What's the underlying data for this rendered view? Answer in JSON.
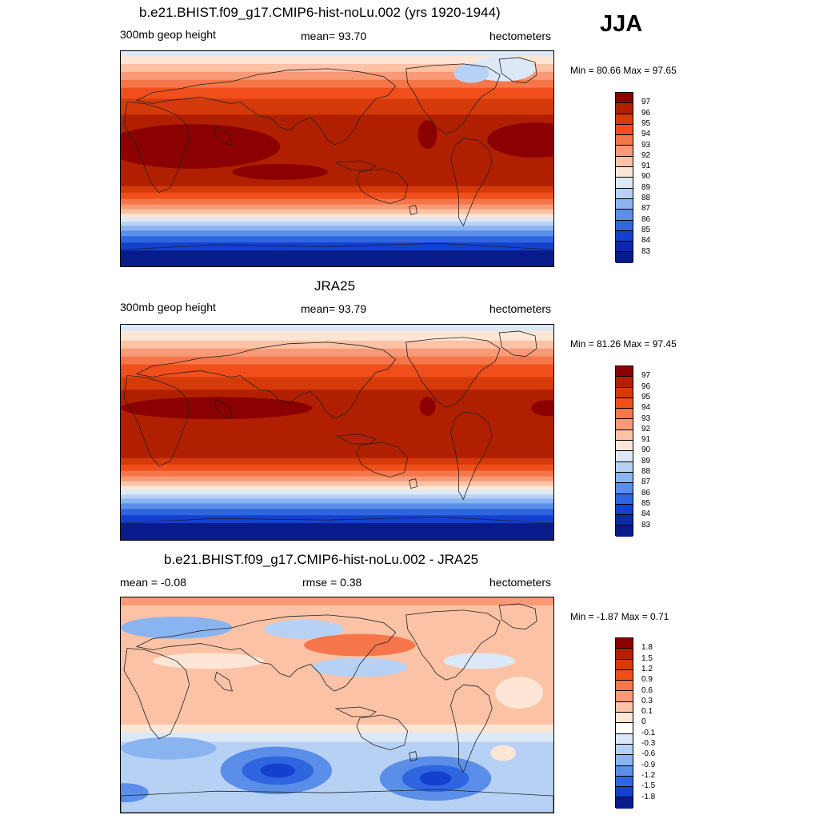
{
  "season": "JJA",
  "panels": [
    {
      "id": "model",
      "title": "b.e21.BHIST.f09_g17.CMIP6-hist-noLu.002 (yrs 1920-1944)",
      "left_label": "300mb geop height",
      "center_label": "mean=  93.70",
      "right_label": "hectometers",
      "minmax": "Min =  80.66 Max =  97.65",
      "colorbar_labels": [
        "97",
        "96",
        "95",
        "94",
        "93",
        "92",
        "91",
        "90",
        "89",
        "88",
        "87",
        "86",
        "85",
        "84",
        "83"
      ],
      "colorbar_colors": [
        "#8b0000",
        "#b02000",
        "#d43a0a",
        "#f04f1c",
        "#f5764a",
        "#f99a76",
        "#fbc2a5",
        "#fde6d6",
        "#dbe8f8",
        "#b7d1f5",
        "#8ab4f0",
        "#5b8ee8",
        "#2f66e0",
        "#1440cf",
        "#0a2aa8",
        "#071b8a"
      ],
      "bands": [
        {
          "top": 0,
          "h": 6,
          "c": "#dbe8f8"
        },
        {
          "top": 6,
          "h": 10,
          "c": "#fde6d6"
        },
        {
          "top": 16,
          "h": 10,
          "c": "#fbc2a5"
        },
        {
          "top": 26,
          "h": 10,
          "c": "#f99a76"
        },
        {
          "top": 36,
          "h": 10,
          "c": "#f5764a"
        },
        {
          "top": 46,
          "h": 14,
          "c": "#f04f1c"
        },
        {
          "top": 60,
          "h": 20,
          "c": "#d43a0a"
        },
        {
          "top": 80,
          "h": 90,
          "c": "#b02000"
        },
        {
          "top": 170,
          "h": 8,
          "c": "#d43a0a"
        },
        {
          "top": 178,
          "h": 8,
          "c": "#f04f1c"
        },
        {
          "top": 186,
          "h": 7,
          "c": "#f5764a"
        },
        {
          "top": 193,
          "h": 6,
          "c": "#f99a76"
        },
        {
          "top": 199,
          "h": 6,
          "c": "#fbc2a5"
        },
        {
          "top": 205,
          "h": 5,
          "c": "#fde6d6"
        },
        {
          "top": 210,
          "h": 5,
          "c": "#dbe8f8"
        },
        {
          "top": 215,
          "h": 5,
          "c": "#b7d1f5"
        },
        {
          "top": 220,
          "h": 6,
          "c": "#8ab4f0"
        },
        {
          "top": 226,
          "h": 7,
          "c": "#5b8ee8"
        },
        {
          "top": 233,
          "h": 8,
          "c": "#2f66e0"
        },
        {
          "top": 241,
          "h": 10,
          "c": "#1440cf"
        },
        {
          "top": 251,
          "h": 20,
          "c": "#071b8a"
        }
      ],
      "blobs": [
        {
          "cx": 90,
          "cy": 120,
          "rx": 110,
          "ry": 28,
          "c": "#8b0000"
        },
        {
          "cx": 520,
          "cy": 112,
          "rx": 60,
          "ry": 22,
          "c": "#8b0000"
        },
        {
          "cx": 200,
          "cy": 152,
          "rx": 60,
          "ry": 10,
          "c": "#8b0000"
        },
        {
          "cx": 385,
          "cy": 105,
          "rx": 12,
          "ry": 18,
          "c": "#8b0000"
        },
        {
          "cx": 480,
          "cy": 22,
          "rx": 40,
          "ry": 16,
          "c": "#dbe8f8"
        },
        {
          "cx": 440,
          "cy": 28,
          "rx": 22,
          "ry": 12,
          "c": "#b7d1f5"
        }
      ]
    },
    {
      "id": "obs",
      "title": "JRA25",
      "left_label": "300mb geop height",
      "center_label": "mean=  93.79",
      "right_label": "hectometers",
      "minmax": "Min =  81.26 Max =  97.45",
      "colorbar_labels": [
        "97",
        "96",
        "95",
        "94",
        "93",
        "92",
        "91",
        "90",
        "89",
        "88",
        "87",
        "86",
        "85",
        "84",
        "83"
      ],
      "colorbar_colors": [
        "#8b0000",
        "#b02000",
        "#d43a0a",
        "#f04f1c",
        "#f5764a",
        "#f99a76",
        "#fbc2a5",
        "#fde6d6",
        "#dbe8f8",
        "#b7d1f5",
        "#8ab4f0",
        "#5b8ee8",
        "#2f66e0",
        "#1440cf",
        "#0a2aa8",
        "#071b8a"
      ],
      "bands": [
        {
          "top": 0,
          "h": 8,
          "c": "#dbe8f8"
        },
        {
          "top": 8,
          "h": 12,
          "c": "#fde6d6"
        },
        {
          "top": 20,
          "h": 10,
          "c": "#fbc2a5"
        },
        {
          "top": 30,
          "h": 10,
          "c": "#f99a76"
        },
        {
          "top": 40,
          "h": 10,
          "c": "#f5764a"
        },
        {
          "top": 50,
          "h": 16,
          "c": "#f04f1c"
        },
        {
          "top": 66,
          "h": 16,
          "c": "#d43a0a"
        },
        {
          "top": 82,
          "h": 86,
          "c": "#b02000"
        },
        {
          "top": 168,
          "h": 8,
          "c": "#d43a0a"
        },
        {
          "top": 176,
          "h": 8,
          "c": "#f04f1c"
        },
        {
          "top": 184,
          "h": 7,
          "c": "#f5764a"
        },
        {
          "top": 191,
          "h": 6,
          "c": "#f99a76"
        },
        {
          "top": 197,
          "h": 6,
          "c": "#fbc2a5"
        },
        {
          "top": 203,
          "h": 5,
          "c": "#fde6d6"
        },
        {
          "top": 208,
          "h": 6,
          "c": "#dbe8f8"
        },
        {
          "top": 214,
          "h": 5,
          "c": "#b7d1f5"
        },
        {
          "top": 219,
          "h": 6,
          "c": "#8ab4f0"
        },
        {
          "top": 225,
          "h": 7,
          "c": "#5b8ee8"
        },
        {
          "top": 232,
          "h": 8,
          "c": "#2f66e0"
        },
        {
          "top": 240,
          "h": 10,
          "c": "#1440cf"
        },
        {
          "top": 250,
          "h": 21,
          "c": "#071b8a"
        }
      ],
      "blobs": [
        {
          "cx": 120,
          "cy": 105,
          "rx": 120,
          "ry": 14,
          "c": "#8b0000"
        },
        {
          "cx": 385,
          "cy": 103,
          "rx": 10,
          "ry": 12,
          "c": "#8b0000"
        },
        {
          "cx": 535,
          "cy": 105,
          "rx": 20,
          "ry": 10,
          "c": "#8b0000"
        }
      ]
    },
    {
      "id": "diff",
      "title": "b.e21.BHIST.f09_g17.CMIP6-hist-noLu.002 - JRA25",
      "left_label": "mean =  -0.08",
      "center_label": "rmse =   0.38",
      "right_label": "hectometers",
      "minmax": "Min =  -1.87 Max =   0.71",
      "colorbar_labels": [
        "1.8",
        "1.5",
        "1.2",
        "0.9",
        "0.6",
        "0.3",
        "0.1",
        "0",
        "-0.1",
        "-0.3",
        "-0.6",
        "-0.9",
        "-1.2",
        "-1.5",
        "-1.8"
      ],
      "colorbar_colors": [
        "#8b0000",
        "#b02000",
        "#d43a0a",
        "#f04f1c",
        "#f5764a",
        "#f99a76",
        "#fbc2a5",
        "#fde6d6",
        "#ffffff",
        "#dbe8f8",
        "#b7d1f5",
        "#8ab4f0",
        "#5b8ee8",
        "#2f66e0",
        "#1440cf",
        "#071b8a"
      ],
      "bands": [
        {
          "top": 0,
          "h": 10,
          "c": "#f99a76"
        },
        {
          "top": 10,
          "h": 10,
          "c": "#fbc2a5"
        },
        {
          "top": 20,
          "h": 140,
          "c": "#fbc2a5"
        },
        {
          "top": 160,
          "h": 10,
          "c": "#fde6d6"
        },
        {
          "top": 170,
          "h": 12,
          "c": "#dbe8f8"
        },
        {
          "top": 182,
          "h": 89,
          "c": "#b7d1f5"
        }
      ],
      "blobs": [
        {
          "cx": 70,
          "cy": 38,
          "rx": 70,
          "ry": 14,
          "c": "#8ab4f0"
        },
        {
          "cx": 230,
          "cy": 40,
          "rx": 50,
          "ry": 12,
          "c": "#b7d1f5"
        },
        {
          "cx": 300,
          "cy": 60,
          "rx": 70,
          "ry": 14,
          "c": "#f5764a"
        },
        {
          "cx": 110,
          "cy": 80,
          "rx": 70,
          "ry": 10,
          "c": "#fde6d6"
        },
        {
          "cx": 300,
          "cy": 88,
          "rx": 60,
          "ry": 12,
          "c": "#b7d1f5"
        },
        {
          "cx": 450,
          "cy": 80,
          "rx": 45,
          "ry": 10,
          "c": "#dbe8f8"
        },
        {
          "cx": 500,
          "cy": 120,
          "rx": 30,
          "ry": 20,
          "c": "#fde6d6"
        },
        {
          "cx": 60,
          "cy": 190,
          "rx": 60,
          "ry": 14,
          "c": "#8ab4f0"
        },
        {
          "cx": 195,
          "cy": 218,
          "rx": 70,
          "ry": 30,
          "c": "#5b8ee8"
        },
        {
          "cx": 197,
          "cy": 218,
          "rx": 45,
          "ry": 18,
          "c": "#2f66e0"
        },
        {
          "cx": 197,
          "cy": 218,
          "rx": 22,
          "ry": 9,
          "c": "#1440cf"
        },
        {
          "cx": 395,
          "cy": 228,
          "rx": 70,
          "ry": 28,
          "c": "#5b8ee8"
        },
        {
          "cx": 395,
          "cy": 228,
          "rx": 42,
          "ry": 17,
          "c": "#2f66e0"
        },
        {
          "cx": 395,
          "cy": 228,
          "rx": 20,
          "ry": 9,
          "c": "#1440cf"
        },
        {
          "cx": 480,
          "cy": 196,
          "rx": 16,
          "ry": 10,
          "c": "#fde6d6"
        },
        {
          "cx": 5,
          "cy": 246,
          "rx": 30,
          "ry": 12,
          "c": "#5b8ee8"
        }
      ]
    }
  ]
}
